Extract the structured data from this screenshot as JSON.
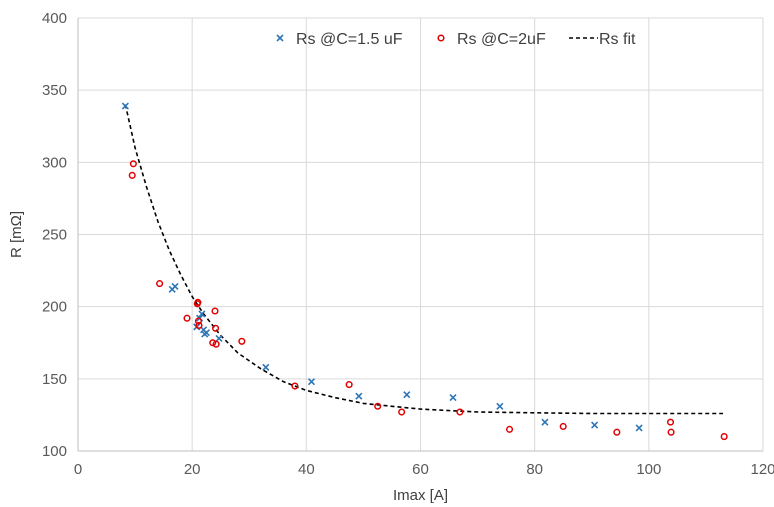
{
  "chart_data": {
    "type": "scatter",
    "title": "",
    "xlabel": "Imax [A]",
    "ylabel": "R [mΩ]",
    "xlim": [
      0,
      120
    ],
    "ylim": [
      100,
      400
    ],
    "xticks": [
      0,
      20,
      40,
      60,
      80,
      100,
      120
    ],
    "yticks": [
      100,
      150,
      200,
      250,
      300,
      350,
      400
    ],
    "grid": "vertical and horizontal major gridlines",
    "legend_position": "top",
    "colors": {
      "series1": "#2e75b6",
      "series2": "#e00000",
      "fit": "#000000",
      "grid": "#d9d9d9",
      "axis": "#bfbfbf"
    },
    "series": [
      {
        "name": "Rs @C=1.5 uF",
        "marker": "x",
        "points": [
          [
            8.3,
            339
          ],
          [
            16.5,
            212
          ],
          [
            17.0,
            214
          ],
          [
            20.8,
            186
          ],
          [
            21.3,
            192
          ],
          [
            21.7,
            195
          ],
          [
            22.0,
            184
          ],
          [
            22.2,
            181
          ],
          [
            22.5,
            182
          ],
          [
            24.7,
            178
          ],
          [
            32.9,
            158
          ],
          [
            40.9,
            148
          ],
          [
            49.2,
            138
          ],
          [
            57.6,
            139
          ],
          [
            65.7,
            137
          ],
          [
            73.9,
            131
          ],
          [
            81.8,
            120
          ],
          [
            90.5,
            118
          ],
          [
            98.3,
            116
          ]
        ]
      },
      {
        "name": "Rs @C=2uF",
        "marker": "o",
        "points": [
          [
            9.5,
            291
          ],
          [
            9.7,
            299
          ],
          [
            14.3,
            216
          ],
          [
            19.1,
            192
          ],
          [
            20.9,
            202
          ],
          [
            21.0,
            203
          ],
          [
            21.1,
            190
          ],
          [
            21.2,
            187
          ],
          [
            23.6,
            175
          ],
          [
            24.0,
            197
          ],
          [
            24.1,
            185
          ],
          [
            24.2,
            174
          ],
          [
            28.7,
            176
          ],
          [
            38.0,
            145
          ],
          [
            47.5,
            146
          ],
          [
            52.5,
            131
          ],
          [
            56.7,
            127
          ],
          [
            66.9,
            127
          ],
          [
            75.6,
            115
          ],
          [
            85.0,
            117
          ],
          [
            94.4,
            113
          ],
          [
            103.8,
            120
          ],
          [
            103.9,
            113
          ],
          [
            113.2,
            110
          ]
        ]
      },
      {
        "name": "Rs fit",
        "style": "dashed-line",
        "points": [
          [
            8.3,
            340
          ],
          [
            10,
            310
          ],
          [
            12,
            283
          ],
          [
            14,
            259
          ],
          [
            16,
            239
          ],
          [
            18,
            222
          ],
          [
            20,
            207
          ],
          [
            22,
            195
          ],
          [
            25,
            180
          ],
          [
            28,
            168
          ],
          [
            32,
            157
          ],
          [
            36,
            148
          ],
          [
            40,
            142
          ],
          [
            45,
            137
          ],
          [
            50,
            133
          ],
          [
            55,
            131
          ],
          [
            60,
            129
          ],
          [
            70,
            127
          ],
          [
            80,
            126.5
          ],
          [
            90,
            126
          ],
          [
            100,
            126
          ],
          [
            113,
            126
          ]
        ]
      }
    ]
  }
}
